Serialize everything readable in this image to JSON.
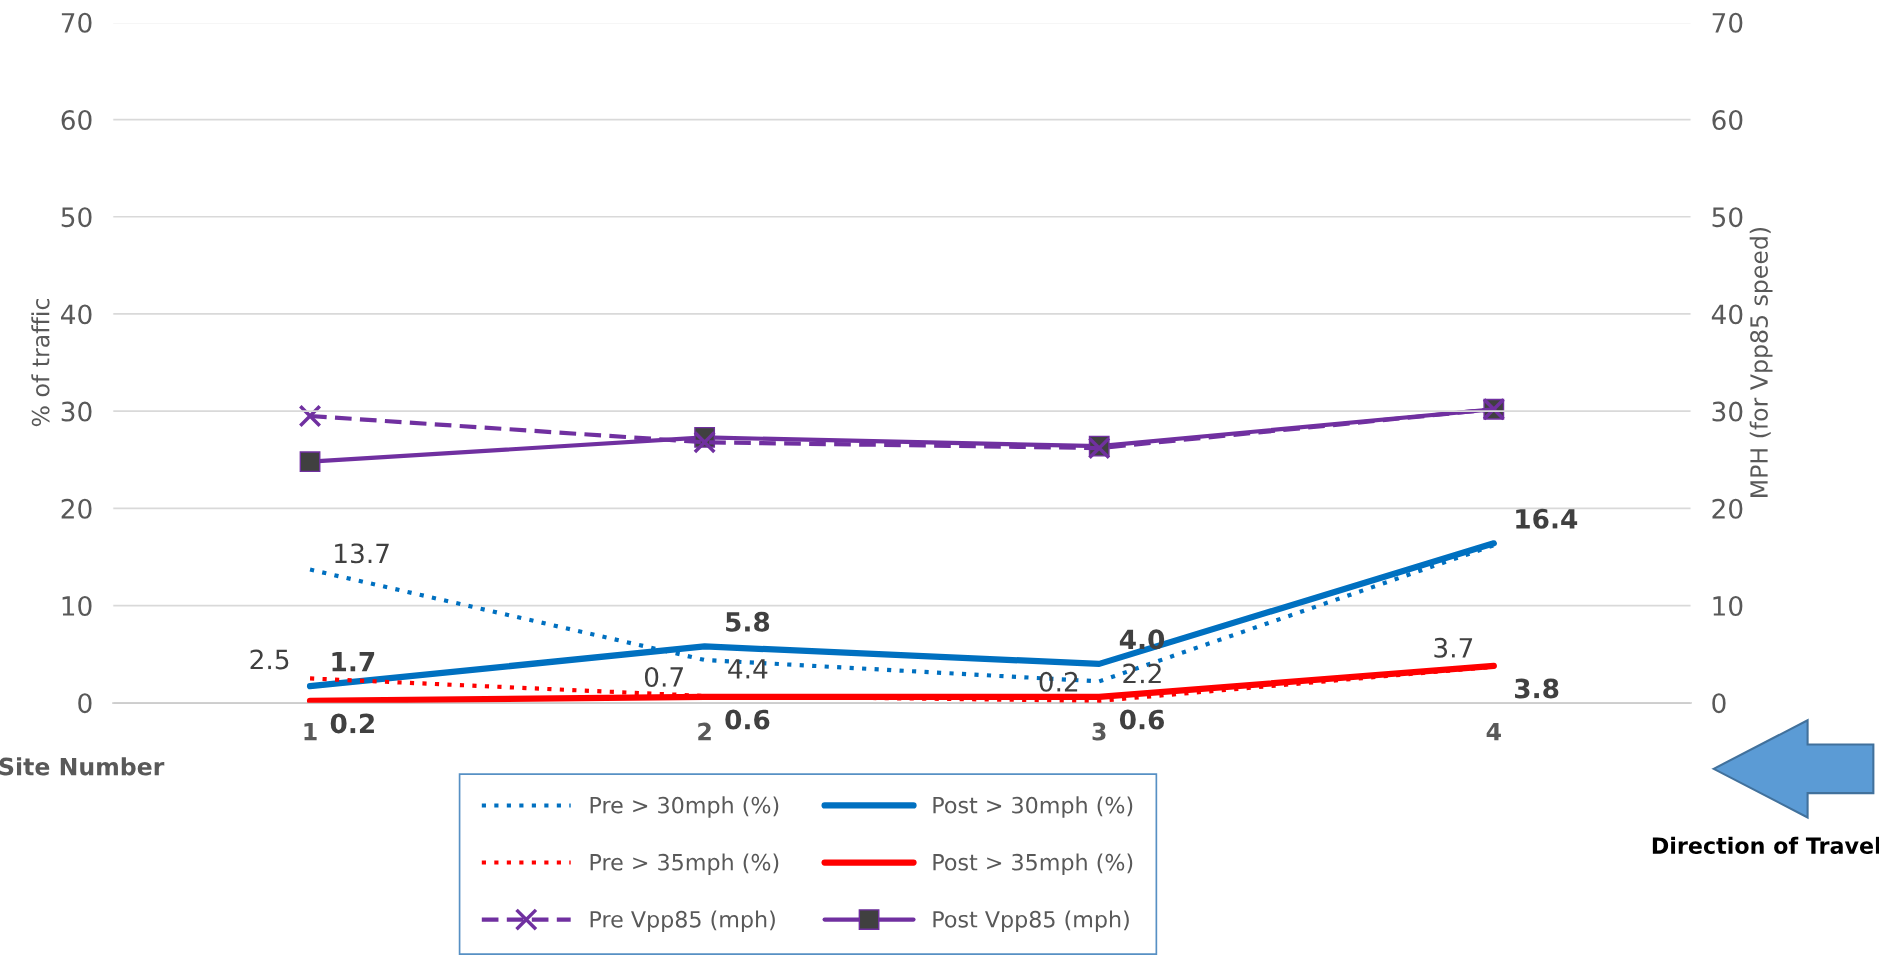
{
  "chart_data": {
    "type": "line",
    "categories": [
      "1",
      "2",
      "3",
      "4"
    ],
    "xlabel": "Site Number",
    "ylabel": "% of traffic",
    "y2label": "MPH (for Vpp85 speed)",
    "ylim": [
      0,
      70
    ],
    "yticks": [
      0,
      10,
      20,
      30,
      40,
      50,
      60,
      70
    ],
    "y2lim": [
      0,
      70
    ],
    "y2ticks": [
      0,
      10,
      20,
      30,
      40,
      50,
      60,
      70
    ],
    "grid": "y",
    "legend": "bottom",
    "annotations": [
      "Direction of Travel"
    ],
    "series": [
      {
        "name": "Pre > 30mph (%)",
        "color": "#0070c0",
        "line_style": "dotted",
        "marker": "none",
        "values": [
          13.7,
          4.4,
          2.2,
          16.2
        ],
        "value_labels": [
          "13.7",
          "4.4",
          "2.2",
          null
        ]
      },
      {
        "name": "Post > 30mph (%)",
        "color": "#0070c0",
        "line_style": "solid",
        "marker": "none",
        "values": [
          1.7,
          5.8,
          4.0,
          16.4
        ],
        "value_labels": [
          "1.7",
          "5.8",
          "4.0",
          "16.4"
        ]
      },
      {
        "name": "Pre > 35mph (%)",
        "color": "#ff0000",
        "line_style": "dotted",
        "marker": "none",
        "values": [
          2.5,
          0.7,
          0.2,
          3.7
        ],
        "value_labels": [
          "2.5",
          "0.7",
          "0.2",
          "3.7"
        ]
      },
      {
        "name": "Post > 35mph (%)",
        "color": "#ff0000",
        "line_style": "solid",
        "marker": "none",
        "values": [
          0.2,
          0.6,
          0.6,
          3.8
        ],
        "value_labels": [
          "0.2",
          "0.6",
          "0.6",
          "3.8"
        ]
      },
      {
        "name": "Pre Vpp85 (mph)",
        "color": "#7030a0",
        "line_style": "dashed",
        "marker": "cross",
        "axis": "y2",
        "values": [
          29.5,
          26.8,
          26.2,
          30.2
        ]
      },
      {
        "name": "Post Vpp85 (mph)",
        "color": "#7030a0",
        "line_style": "solid",
        "marker": "square",
        "axis": "y2",
        "values": [
          24.8,
          27.3,
          26.4,
          30.2
        ]
      }
    ]
  }
}
